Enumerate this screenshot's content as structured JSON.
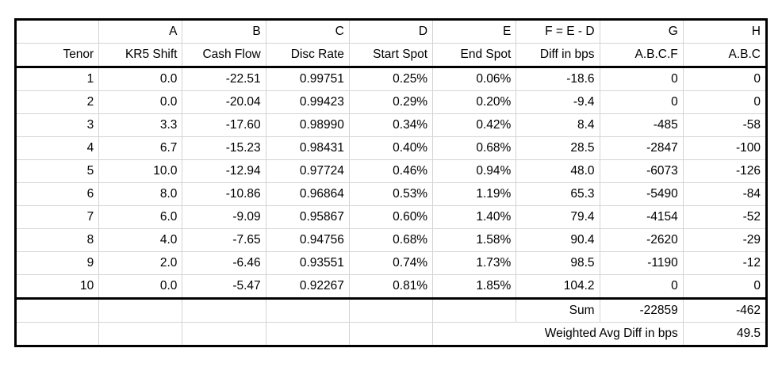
{
  "table": {
    "col_letters": [
      "",
      "A",
      "B",
      "C",
      "D",
      "E",
      "F = E - D",
      "G",
      "H"
    ],
    "col_names": [
      "Tenor",
      "KR5 Shift",
      "Cash Flow",
      "Disc Rate",
      "Start Spot",
      "End Spot",
      "Diff in bps",
      "A.B.C.F",
      "A.B.C"
    ],
    "rows": [
      [
        "1",
        "0.0",
        "-22.51",
        "0.99751",
        "0.25%",
        "0.06%",
        "-18.6",
        "0",
        "0"
      ],
      [
        "2",
        "0.0",
        "-20.04",
        "0.99423",
        "0.29%",
        "0.20%",
        "-9.4",
        "0",
        "0"
      ],
      [
        "3",
        "3.3",
        "-17.60",
        "0.98990",
        "0.34%",
        "0.42%",
        "8.4",
        "-485",
        "-58"
      ],
      [
        "4",
        "6.7",
        "-15.23",
        "0.98431",
        "0.40%",
        "0.68%",
        "28.5",
        "-2847",
        "-100"
      ],
      [
        "5",
        "10.0",
        "-12.94",
        "0.97724",
        "0.46%",
        "0.94%",
        "48.0",
        "-6073",
        "-126"
      ],
      [
        "6",
        "8.0",
        "-10.86",
        "0.96864",
        "0.53%",
        "1.19%",
        "65.3",
        "-5490",
        "-84"
      ],
      [
        "7",
        "6.0",
        "-9.09",
        "0.95867",
        "0.60%",
        "1.40%",
        "79.4",
        "-4154",
        "-52"
      ],
      [
        "8",
        "4.0",
        "-7.65",
        "0.94756",
        "0.68%",
        "1.58%",
        "90.4",
        "-2620",
        "-29"
      ],
      [
        "9",
        "2.0",
        "-6.46",
        "0.93551",
        "0.74%",
        "1.73%",
        "98.5",
        "-1190",
        "-12"
      ],
      [
        "10",
        "0.0",
        "-5.47",
        "0.92267",
        "0.81%",
        "1.85%",
        "104.2",
        "0",
        "0"
      ]
    ],
    "sum_row": {
      "label": "Sum",
      "abcf_total": "-22859",
      "abc_total": "-462"
    },
    "weighted_row": {
      "label": "Weighted Avg Diff in bps",
      "value": "49.5"
    },
    "colors": {
      "grid_line": "#d4d4d4",
      "border": "#000000",
      "text": "#000000",
      "background": "#ffffff"
    }
  }
}
